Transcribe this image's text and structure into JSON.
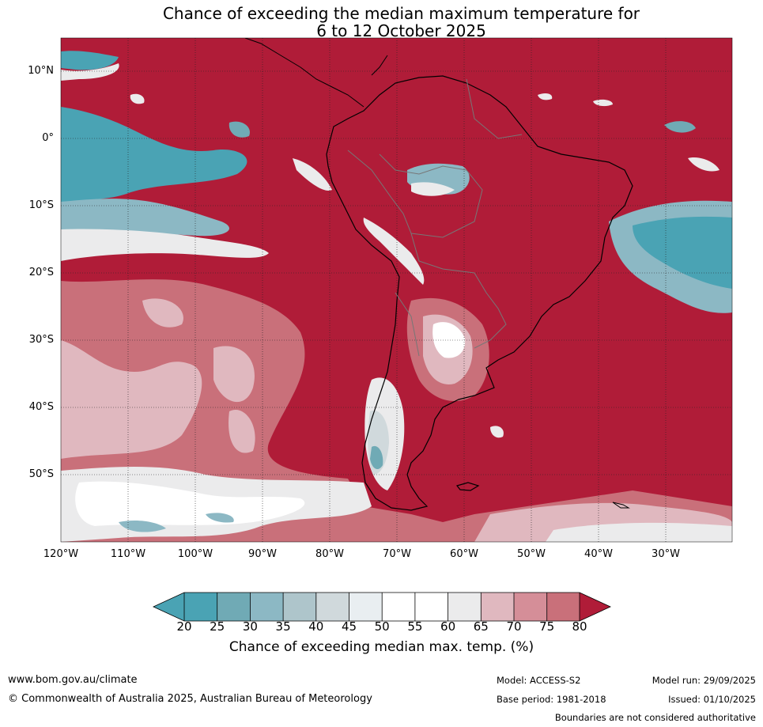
{
  "title": {
    "line1": "Chance of exceeding the median maximum temperature for",
    "line2": "6 to 12 October 2025"
  },
  "map": {
    "lat_labels": [
      "10°N",
      "0°",
      "10°S",
      "20°S",
      "30°S",
      "40°S",
      "50°S"
    ],
    "lon_labels": [
      "120°W",
      "110°W",
      "100°W",
      "90°W",
      "80°W",
      "70°W",
      "60°W",
      "50°W",
      "40°W",
      "30°W"
    ],
    "lat_range": [
      -60,
      15
    ],
    "lon_range": [
      -120,
      -20
    ],
    "land_mask_color": "#000000",
    "border_color": "#777777"
  },
  "colorbar": {
    "ticks": [
      "20",
      "25",
      "30",
      "35",
      "40",
      "45",
      "50",
      "55",
      "60",
      "65",
      "70",
      "75",
      "80"
    ],
    "colors": [
      "#4aa3b4",
      "#70aab5",
      "#8cb8c4",
      "#aec5cb",
      "#d0d9dc",
      "#e9eef1",
      "#ffffff",
      "#ffffff",
      "#ebebec",
      "#e0b8bf",
      "#d58e98",
      "#c9707a",
      "#c14551",
      "#b01c38"
    ],
    "label": "Chance of exceeding median max. temp. (%)"
  },
  "footer": {
    "website": "www.bom.gov.au/climate",
    "copyright": "© Commonwealth of Australia 2025, Australian Bureau of Meteorology",
    "model": "Model: ACCESS-S2",
    "base_period": "Base period: 1981-2018",
    "model_run": "Model run: 29/09/2025",
    "issued": "Issued: 01/10/2025",
    "disclaimer": "Boundaries are not considered authoritative"
  }
}
